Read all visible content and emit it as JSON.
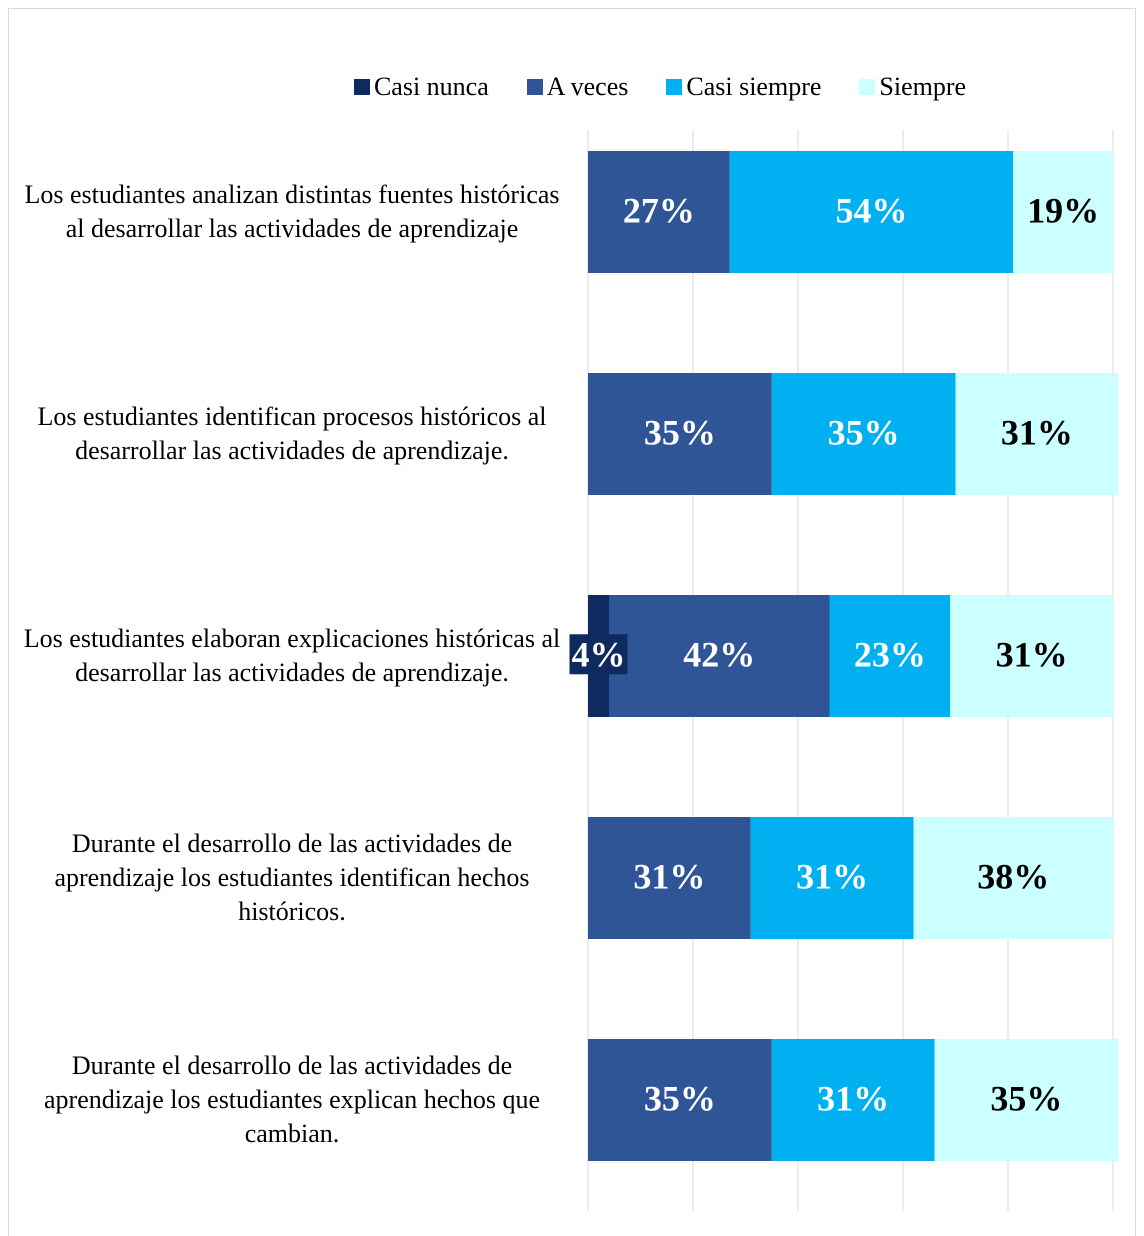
{
  "chart_data": {
    "type": "stacked_barh",
    "categories": [
      "Los estudiantes analizan distintas fuentes históricas al desarrollar las actividades de aprendizaje",
      "Los estudiantes identifican procesos históricos al desarrollar las actividades de aprendizaje.",
      "Los estudiantes elaboran explicaciones históricas al desarrollar las actividades de aprendizaje.",
      "Durante el desarrollo de las actividades de aprendizaje los estudiantes identifican hechos históricos.",
      "Durante el desarrollo de las actividades de aprendizaje los estudiantes explican hechos que cambian."
    ],
    "series": [
      {
        "name": "Casi nunca",
        "color": "#0e2a5e",
        "label_color": "#ffffff",
        "values": [
          null,
          null,
          4,
          null,
          null
        ],
        "value_labels": [
          null,
          null,
          "4%",
          null,
          null
        ]
      },
      {
        "name": "A veces",
        "color": "#2f5597",
        "label_color": "#ffffff",
        "values": [
          27,
          35,
          42,
          31,
          35
        ],
        "value_labels": [
          "27%",
          "35%",
          "42%",
          "31%",
          "35%"
        ]
      },
      {
        "name": "Casi siempre",
        "color": "#00b0f0",
        "label_color": "#ffffff",
        "values": [
          54,
          35,
          23,
          31,
          31
        ],
        "value_labels": [
          "54%",
          "35%",
          "23%",
          "31%",
          "31%"
        ]
      },
      {
        "name": "Siempre",
        "color": "#ccffff",
        "label_color": "#000000",
        "values": [
          19,
          31,
          31,
          38,
          35
        ],
        "value_labels": [
          "19%",
          "31%",
          "31%",
          "38%",
          "35%"
        ]
      }
    ],
    "xlim": [
      0,
      100
    ],
    "xticks": [
      0,
      20,
      40,
      60,
      80,
      100
    ],
    "grid": true,
    "legend": "top"
  }
}
